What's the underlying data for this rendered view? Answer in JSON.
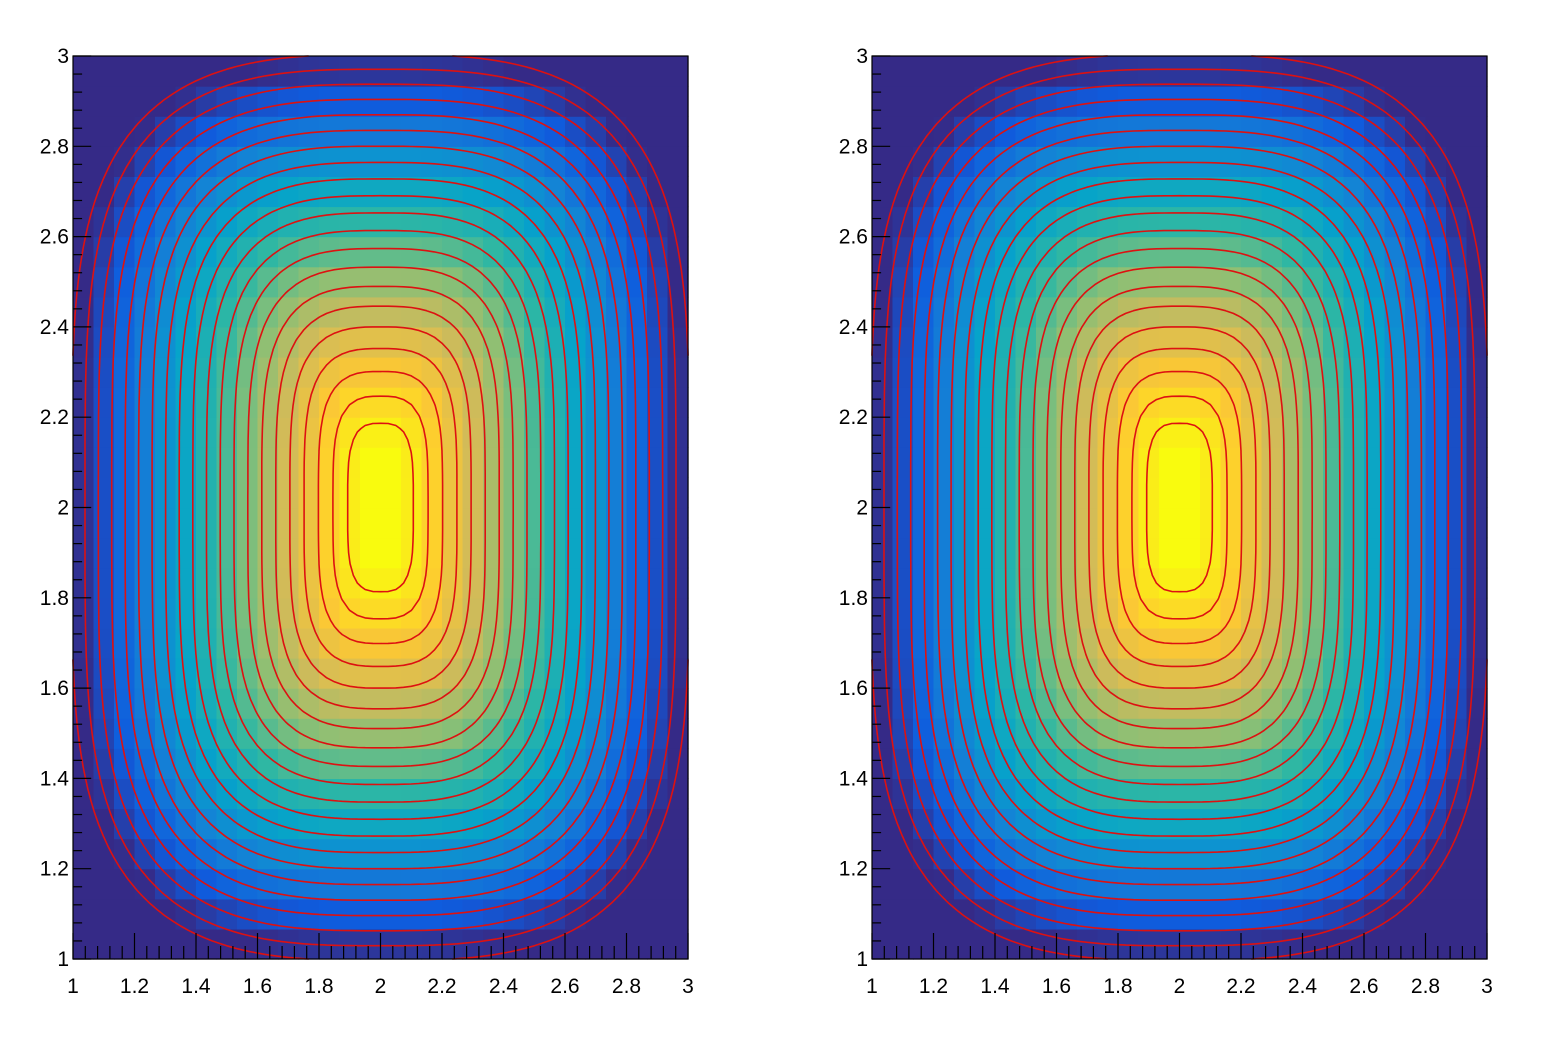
{
  "chart_data": [
    {
      "type": "heatmap",
      "overlay": "contour",
      "x_range": [
        1,
        3
      ],
      "y_range": [
        1,
        3
      ],
      "x_tick_labels": [
        "1",
        "1.2",
        "1.4",
        "1.6",
        "1.8",
        "2",
        "2.2",
        "2.4",
        "2.6",
        "2.8",
        "3"
      ],
      "y_tick_labels": [
        "1",
        "1.2",
        "1.4",
        "1.6",
        "1.8",
        "2",
        "2.2",
        "2.4",
        "2.6",
        "2.8",
        "3"
      ],
      "x_tick_values": [
        1,
        1.2,
        1.4,
        1.6,
        1.8,
        2,
        2.2,
        2.4,
        2.6,
        2.8,
        3
      ],
      "y_tick_values": [
        1,
        1.2,
        1.4,
        1.6,
        1.8,
        2,
        2.2,
        2.4,
        2.6,
        2.8,
        3
      ],
      "nbins_x": 30,
      "nbins_y": 30,
      "peak": [
        2,
        2
      ],
      "contour_levels": 21,
      "contour_color": "#dd1111",
      "colormap": "kBird (dark blue → blue → cyan → green → orange → yellow)"
    },
    {
      "type": "heatmap",
      "overlay": "contour",
      "x_range": [
        1,
        3
      ],
      "y_range": [
        1,
        3
      ],
      "x_tick_labels": [
        "1",
        "1.2",
        "1.4",
        "1.6",
        "1.8",
        "2",
        "2.2",
        "2.4",
        "2.6",
        "2.8",
        "3"
      ],
      "y_tick_labels": [
        "1",
        "1.2",
        "1.4",
        "1.6",
        "1.8",
        "2",
        "2.2",
        "2.4",
        "2.6",
        "2.8",
        "3"
      ],
      "x_tick_values": [
        1,
        1.2,
        1.4,
        1.6,
        1.8,
        2,
        2.2,
        2.4,
        2.6,
        2.8,
        3
      ],
      "y_tick_values": [
        1,
        1.2,
        1.4,
        1.6,
        1.8,
        2,
        2.2,
        2.4,
        2.6,
        2.8,
        3
      ],
      "nbins_x": 30,
      "nbins_y": 30,
      "peak": [
        2,
        2
      ],
      "contour_levels": 21,
      "contour_color": "#dd1111",
      "colormap": "kBird (dark blue → blue → cyan → green → orange → yellow)"
    }
  ]
}
